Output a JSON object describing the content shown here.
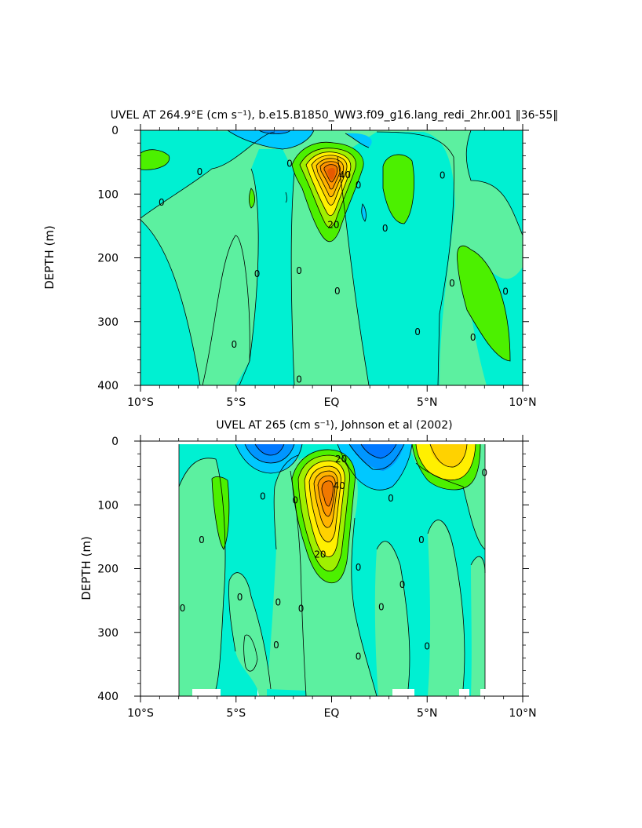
{
  "chart_data": [
    {
      "type": "contour",
      "title": "UVEL AT 264.9°E (cm s⁻¹), b.e15.B1850_WW3.f09_g16.lang_redi_2hr.001 ‖36-55‖",
      "ylabel": "DEPTH (m)",
      "xlabel": "",
      "x_tick_labels": [
        "10°S",
        "5°S",
        "EQ",
        "5°N",
        "10°N"
      ],
      "x_ticks_deg": [
        -10,
        -5,
        0,
        5,
        10
      ],
      "y_tick_labels": [
        "0",
        "100",
        "200",
        "300",
        "400"
      ],
      "y_ticks_m": [
        0,
        100,
        200,
        300,
        400
      ],
      "xlim": [
        -10,
        10
      ],
      "ylim": [
        400,
        0
      ],
      "contour_interval": 10,
      "contour_labels": [
        {
          "text": "0",
          "lat": -8.9,
          "depth": 113
        },
        {
          "text": "0",
          "lat": -6.9,
          "depth": 65
        },
        {
          "text": "0",
          "lat": -5.1,
          "depth": 336
        },
        {
          "text": "0",
          "lat": -3.9,
          "depth": 225
        },
        {
          "text": "0",
          "lat": -2.2,
          "depth": 52
        },
        {
          "text": "0",
          "lat": -1.7,
          "depth": 220
        },
        {
          "text": "0",
          "lat": -1.7,
          "depth": 391
        },
        {
          "text": "0",
          "lat": 0.3,
          "depth": 252
        },
        {
          "text": "0",
          "lat": 1.4,
          "depth": 86
        },
        {
          "text": "0",
          "lat": 2.8,
          "depth": 154
        },
        {
          "text": "0",
          "lat": 4.5,
          "depth": 316
        },
        {
          "text": "0",
          "lat": 5.8,
          "depth": 71
        },
        {
          "text": "0",
          "lat": 6.3,
          "depth": 240
        },
        {
          "text": "0",
          "lat": 7.4,
          "depth": 325
        },
        {
          "text": "0",
          "lat": 9.1,
          "depth": 253
        },
        {
          "text": "20",
          "lat": 0.1,
          "depth": 148
        },
        {
          "text": "40",
          "lat": 0.7,
          "depth": 70
        }
      ],
      "max_value_approx": 60,
      "max_location": {
        "lat": 0,
        "depth": 75
      }
    },
    {
      "type": "contour",
      "title": "UVEL AT 265 (cm s⁻¹), Johnson et al (2002)",
      "ylabel": "DEPTH (m)",
      "xlabel": "",
      "x_tick_labels": [
        "10°S",
        "5°S",
        "EQ",
        "5°N",
        "10°N"
      ],
      "x_ticks_deg": [
        -10,
        -5,
        0,
        5,
        10
      ],
      "y_tick_labels": [
        "0",
        "100",
        "200",
        "300",
        "400"
      ],
      "y_ticks_m": [
        0,
        100,
        200,
        300,
        400
      ],
      "xlim": [
        -10,
        10
      ],
      "ylim": [
        400,
        0
      ],
      "data_lat_range": [
        -8,
        8
      ],
      "contour_interval": 10,
      "contour_labels": [
        {
          "text": "0",
          "lat": -7.8,
          "depth": 262
        },
        {
          "text": "0",
          "lat": -6.8,
          "depth": 155
        },
        {
          "text": "0",
          "lat": -4.8,
          "depth": 245
        },
        {
          "text": "0",
          "lat": -3.6,
          "depth": 87
        },
        {
          "text": "0",
          "lat": -2.8,
          "depth": 253
        },
        {
          "text": "0",
          "lat": -2.9,
          "depth": 320
        },
        {
          "text": "0",
          "lat": -1.9,
          "depth": 93
        },
        {
          "text": "0",
          "lat": -1.6,
          "depth": 263
        },
        {
          "text": "0",
          "lat": 1.4,
          "depth": 198
        },
        {
          "text": "0",
          "lat": 1.4,
          "depth": 338
        },
        {
          "text": "0",
          "lat": 2.6,
          "depth": 260
        },
        {
          "text": "0",
          "lat": 3.1,
          "depth": 90
        },
        {
          "text": "0",
          "lat": 3.7,
          "depth": 225
        },
        {
          "text": "0",
          "lat": 4.7,
          "depth": 155
        },
        {
          "text": "0",
          "lat": 5.0,
          "depth": 322
        },
        {
          "text": "0",
          "lat": 8.0,
          "depth": 50
        },
        {
          "text": "20",
          "lat": 0.5,
          "depth": 28
        },
        {
          "text": "20",
          "lat": -0.6,
          "depth": 178
        },
        {
          "text": "40",
          "lat": 0.4,
          "depth": 70
        }
      ],
      "max_value_approx": 60,
      "max_location": {
        "lat": 0,
        "depth": 70
      }
    }
  ]
}
